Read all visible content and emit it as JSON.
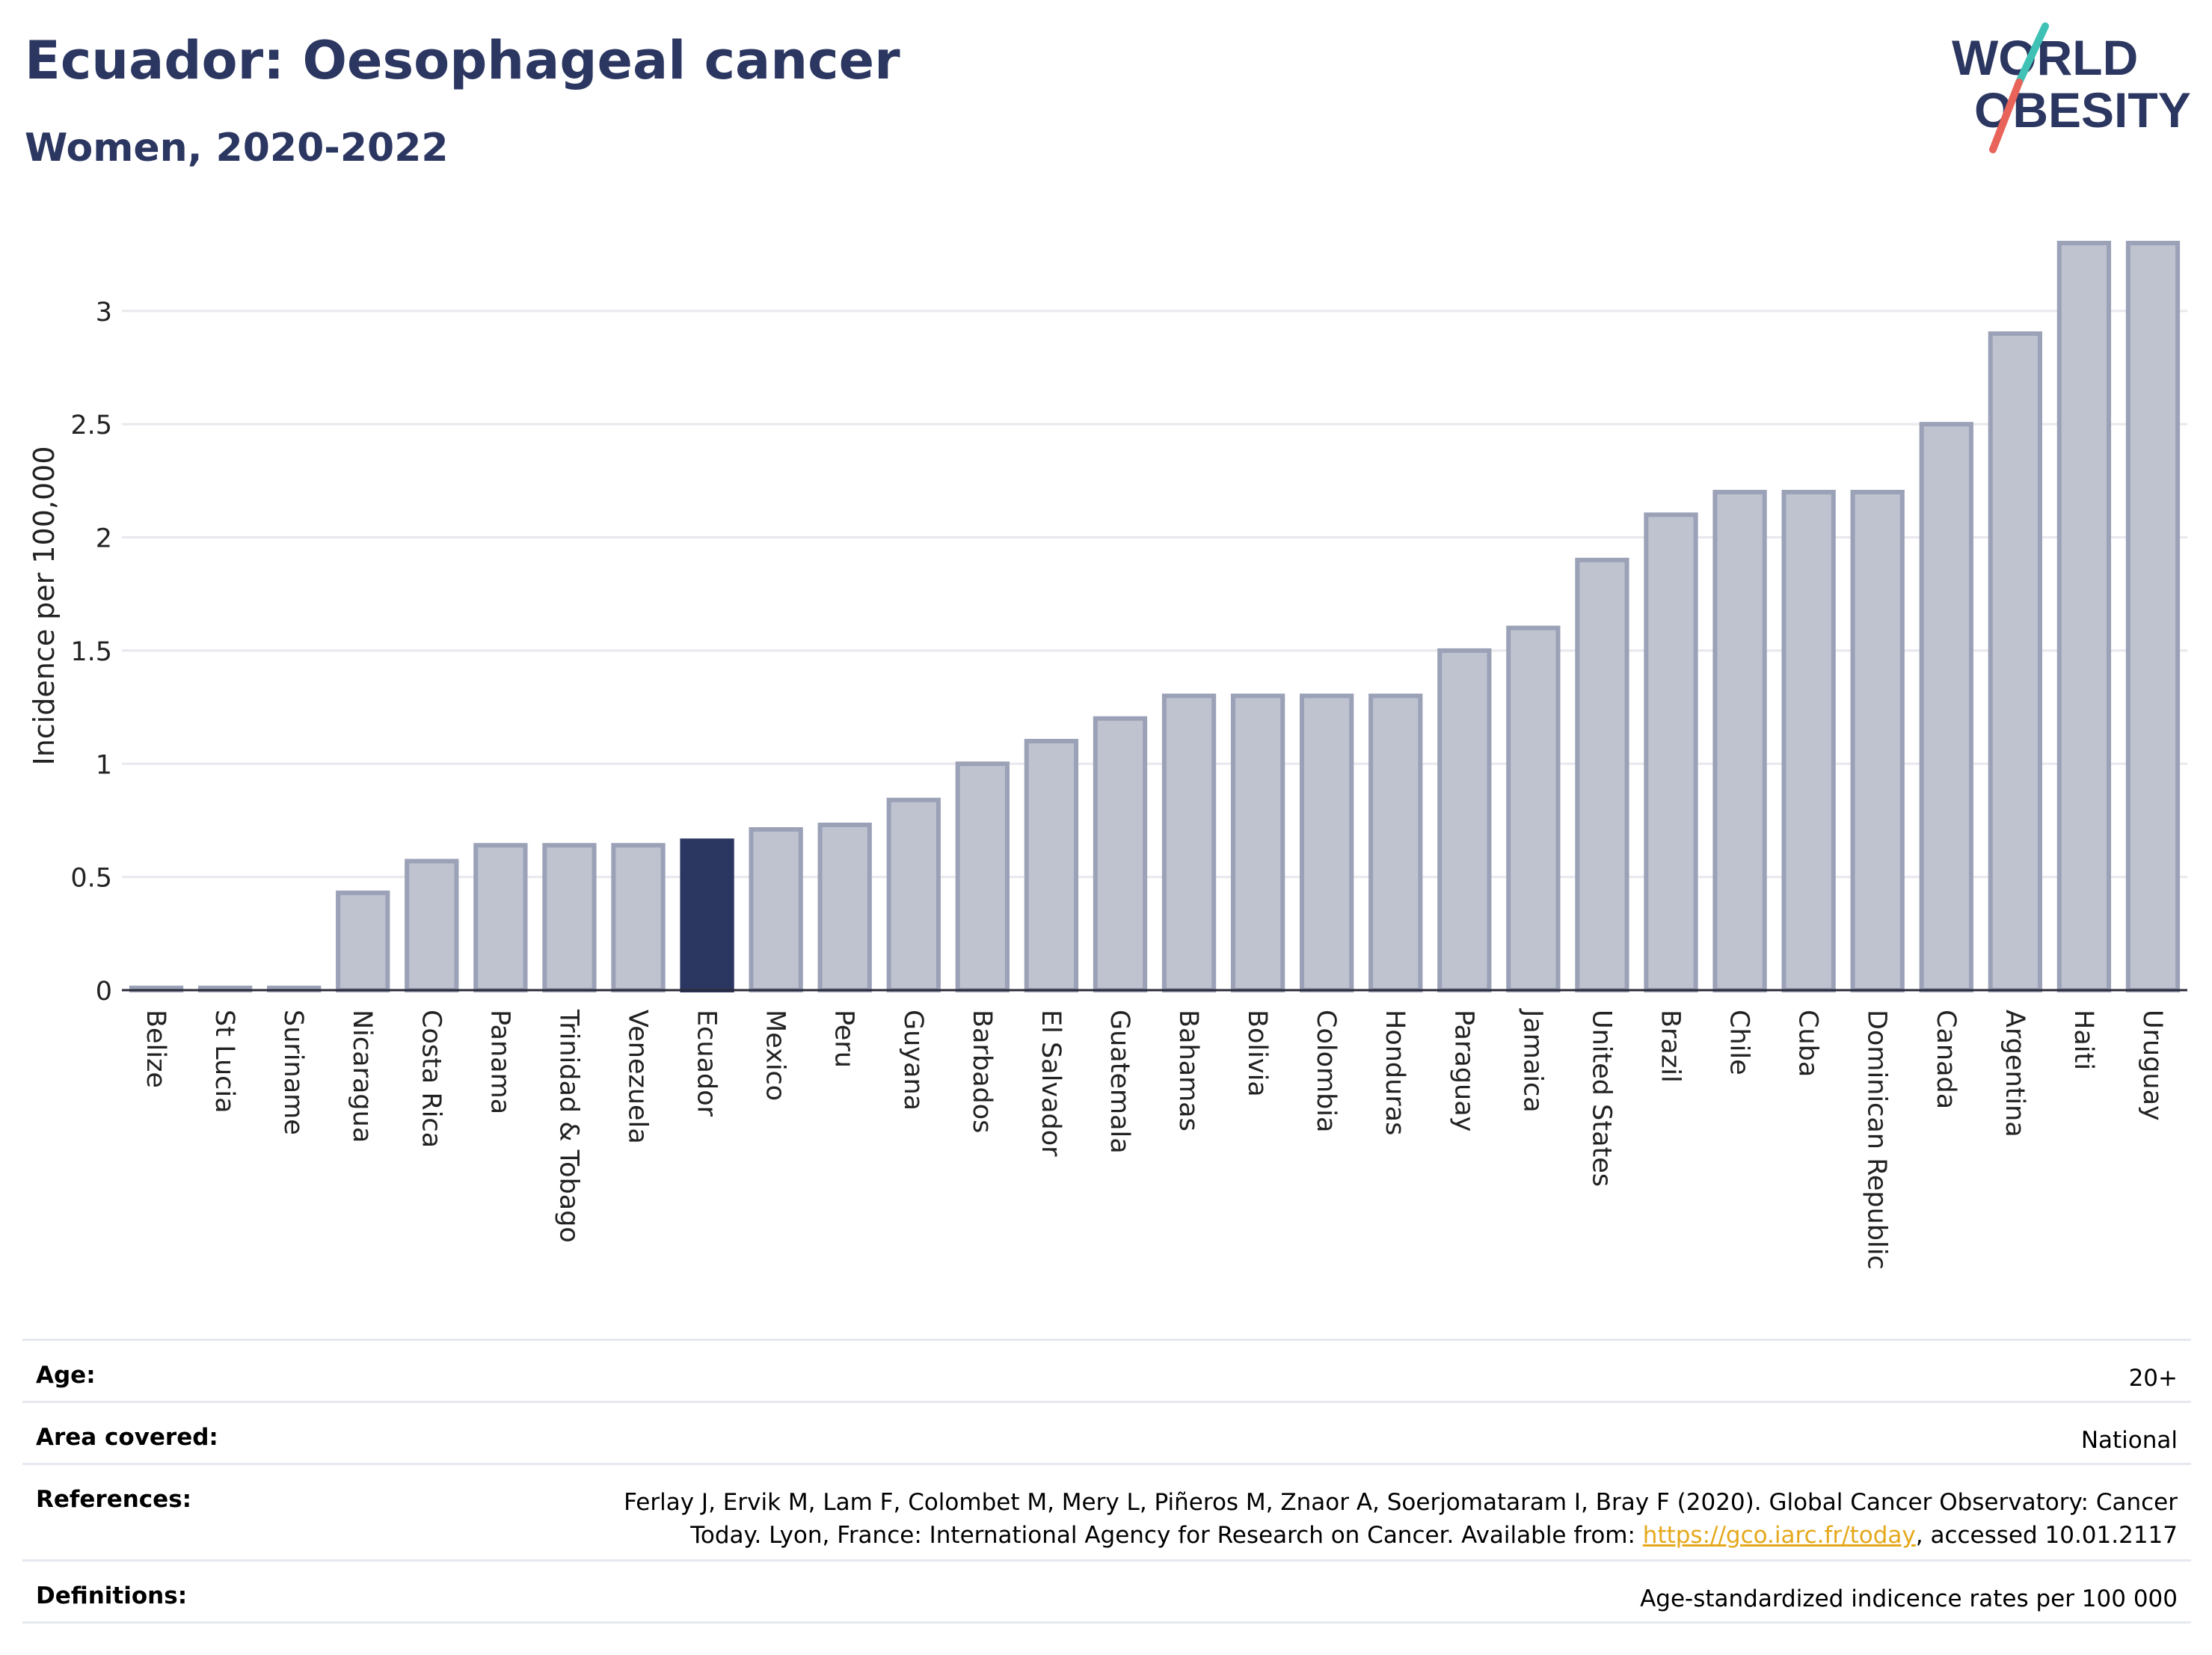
{
  "header": {
    "title": "Ecuador: Oesophageal cancer",
    "subtitle": "Women, 2020-2022"
  },
  "logo": {
    "line1": "WORLD",
    "line2": "OBESITY",
    "colors": {
      "text": "#2b3661",
      "slash_red": "#e8635a",
      "slash_teal": "#3fc1b6"
    }
  },
  "chart_data": {
    "type": "bar",
    "ylabel": "Incidence per 100,000",
    "ylim": [
      0,
      3.3
    ],
    "yticks": [
      "0",
      "0.5",
      "1",
      "1.5",
      "2",
      "2.5",
      "3"
    ],
    "grid": true,
    "highlight": "Ecuador",
    "colors": {
      "bar": "#bfc3d0",
      "bar_outline": "#9ba1b6",
      "highlight": "#2b3661",
      "grid": "#e8e8ee"
    },
    "categories": [
      "Belize",
      "St Lucia",
      "Suriname",
      "Nicaragua",
      "Costa Rica",
      "Panama",
      "Trinidad & Tobago",
      "Venezuela",
      "Ecuador",
      "Mexico",
      "Peru",
      "Guyana",
      "Barbados",
      "El Salvador",
      "Guatemala",
      "Bahamas",
      "Bolivia",
      "Colombia",
      "Honduras",
      "Paraguay",
      "Jamaica",
      "United States",
      "Brazil",
      "Chile",
      "Cuba",
      "Dominican Republic",
      "Canada",
      "Argentina",
      "Haiti",
      "Uruguay"
    ],
    "values": [
      0.01,
      0.01,
      0.01,
      0.43,
      0.57,
      0.64,
      0.64,
      0.64,
      0.66,
      0.71,
      0.73,
      0.84,
      1.0,
      1.1,
      1.2,
      1.3,
      1.3,
      1.3,
      1.3,
      1.5,
      1.6,
      1.9,
      2.1,
      2.2,
      2.2,
      2.2,
      2.5,
      2.9,
      3.3,
      3.3
    ]
  },
  "meta": {
    "age_label": "Age:",
    "age_value": "20+",
    "area_label": "Area covered:",
    "area_value": "National",
    "references_label": "References:",
    "references_line1": "Ferlay J, Ervik M, Lam F, Colombet M, Mery L, Piñeros M, Znaor A, Soerjomataram I, Bray F (2020). Global Cancer Observatory: Cancer",
    "references_line2_pre": "Today. Lyon, France: International Agency for Research on Cancer. Available from: ",
    "references_link": "https://gco.iarc.fr/today",
    "references_line2_post": ", accessed 10.01.2117",
    "definitions_label": "Definitions:",
    "definitions_value": "Age-standardized indicence rates per 100 000"
  }
}
